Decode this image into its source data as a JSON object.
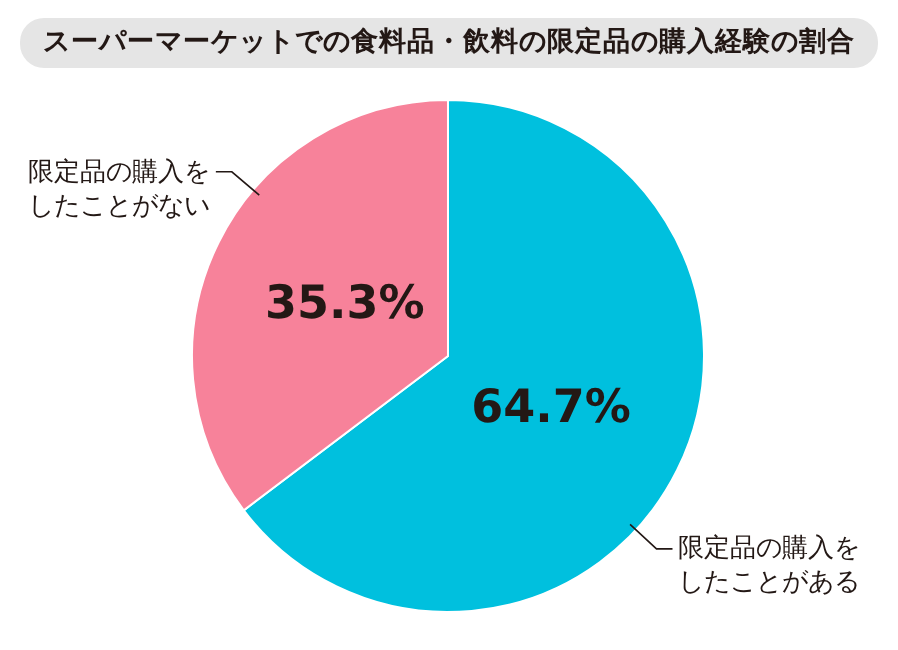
{
  "chart_data": {
    "type": "pie",
    "title": "スーパーマーケットでの食料品・飲料の限定品の購入経験の割合",
    "categories": [
      "限定品の購入をしたことがある",
      "限定品の購入をしたことがない"
    ],
    "values": [
      64.7,
      35.3
    ],
    "colors": [
      "#00c0de",
      "#f7829a"
    ],
    "value_labels": [
      "64.7%",
      "35.3%"
    ]
  }
}
